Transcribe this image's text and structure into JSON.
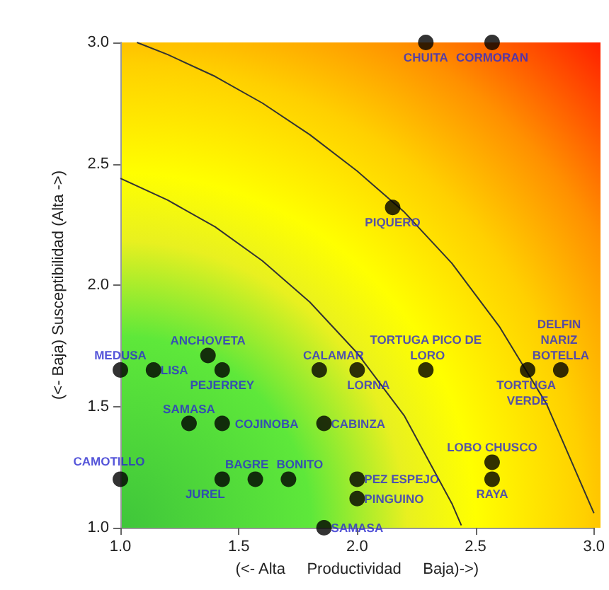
{
  "chart_data": {
    "type": "scatter",
    "xlabel": "(<- Alta     Productividad     Baja)->)",
    "ylabel": "(<- Baja) Susceptibilidad (Alta ->)",
    "xlim": [
      1,
      3
    ],
    "ylim": [
      1,
      3
    ],
    "xticks": [
      {
        "value": 1,
        "label": "1.0"
      },
      {
        "value": 1.5,
        "label": "1.5"
      },
      {
        "value": 2,
        "label": "2.0"
      },
      {
        "value": 2.5,
        "label": "2.5"
      },
      {
        "value": 3,
        "label": "3.0"
      }
    ],
    "yticks": [
      {
        "value": 1,
        "label": "1.0"
      },
      {
        "value": 1.5,
        "label": "1.5"
      },
      {
        "value": 2,
        "label": "2.0"
      },
      {
        "value": 2.5,
        "label": "2.5"
      },
      {
        "value": 3,
        "label": "3.0"
      }
    ],
    "grid": false,
    "marker": "circle",
    "series": [
      {
        "type": "line",
        "color": "#333333",
        "marker": "none",
        "line_style": "solid",
        "x": [
          1.0,
          1.2,
          1.4,
          1.6,
          1.8,
          2.0,
          2.2,
          2.4,
          2.44
        ],
        "values": [
          2.44,
          2.35,
          2.24,
          2.1,
          1.93,
          1.72,
          1.46,
          1.1,
          1.01
        ]
      },
      {
        "type": "line",
        "color": "#333333",
        "marker": "none",
        "line_style": "solid",
        "x": [
          1.07,
          1.2,
          1.4,
          1.6,
          1.8,
          2.0,
          2.2,
          2.4,
          2.6,
          2.8,
          3.0
        ],
        "values": [
          3.0,
          2.95,
          2.86,
          2.75,
          2.62,
          2.47,
          2.3,
          2.09,
          1.83,
          1.51,
          1.06
        ]
      },
      {
        "color": "#000000",
        "x": [
          2.29,
          2.57,
          2.15,
          1.0,
          1.14,
          1.37,
          1.43,
          1.84,
          2.0,
          2.29,
          2.72,
          2.86,
          1.29,
          1.43,
          1.86,
          2.57,
          1.0,
          1.43,
          1.57,
          1.71,
          2.0,
          2.0,
          1.86,
          2.57
        ],
        "values": [
          3.0,
          3.0,
          2.32,
          1.65,
          1.65,
          1.71,
          1.65,
          1.65,
          1.65,
          1.65,
          1.65,
          1.65,
          1.43,
          1.43,
          1.43,
          1.27,
          1.2,
          1.2,
          1.2,
          1.2,
          1.2,
          1.12,
          1.0,
          1.2
        ]
      }
    ],
    "annotations": [
      {
        "text": "CHUITA",
        "x": 2.29,
        "y": 3.0
      },
      {
        "text": "CORMORAN",
        "x": 2.57,
        "y": 3.0
      },
      {
        "text": "PIQUERO",
        "x": 2.15,
        "y": 2.32
      },
      {
        "text": "MEDUSA",
        "x": 1.0,
        "y": 1.65
      },
      {
        "text": "LISA",
        "x": 1.14,
        "y": 1.65
      },
      {
        "text": "ANCHOVETA",
        "x": 1.37,
        "y": 1.71
      },
      {
        "text": "PEJERREY",
        "x": 1.43,
        "y": 1.65
      },
      {
        "text": "CALAMAR",
        "x": 1.84,
        "y": 1.65
      },
      {
        "text": "LORNA",
        "x": 2.0,
        "y": 1.65
      },
      {
        "text": "TORTUGA PICO DE LORO",
        "x": 2.29,
        "y": 1.65
      },
      {
        "text": "TORTUGA VERDE",
        "x": 2.72,
        "y": 1.65
      },
      {
        "text": "DELFIN NARIZ BOTELLA",
        "x": 2.86,
        "y": 1.65
      },
      {
        "text": "SAMASA",
        "x": 1.29,
        "y": 1.43
      },
      {
        "text": "COJINOBA",
        "x": 1.43,
        "y": 1.43
      },
      {
        "text": "CABINZA",
        "x": 1.86,
        "y": 1.43
      },
      {
        "text": "LOBO CHUSCO",
        "x": 2.57,
        "y": 1.27
      },
      {
        "text": "CAMOTILLO",
        "x": 1.0,
        "y": 1.2
      },
      {
        "text": "JUREL",
        "x": 1.43,
        "y": 1.2
      },
      {
        "text": "BAGRE",
        "x": 1.57,
        "y": 1.2
      },
      {
        "text": "BONITO",
        "x": 1.71,
        "y": 1.2
      },
      {
        "text": "PEZ ESPEJO",
        "x": 2.0,
        "y": 1.2
      },
      {
        "text": "PINGUINO",
        "x": 2.0,
        "y": 1.12
      },
      {
        "text": "SAMASA",
        "x": 1.86,
        "y": 1.0
      },
      {
        "text": "RAYA",
        "x": 2.57,
        "y": 1.2
      }
    ]
  }
}
